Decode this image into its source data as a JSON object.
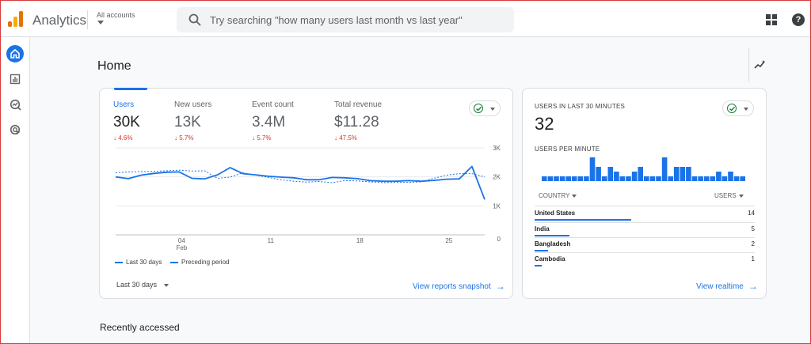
{
  "app": {
    "title": "Analytics",
    "account_label": "All accounts"
  },
  "search": {
    "placeholder": "Try searching \"how many users last month vs last year\""
  },
  "nav": [
    {
      "icon": "home-icon",
      "active": true
    },
    {
      "icon": "reports-icon",
      "active": false
    },
    {
      "icon": "explore-icon",
      "active": false
    },
    {
      "icon": "advertising-icon",
      "active": false
    }
  ],
  "page": {
    "title": "Home",
    "recently_accessed": "Recently accessed"
  },
  "metrics": [
    {
      "label": "Users",
      "value": "30K",
      "change": "↓ 4.6%"
    },
    {
      "label": "New users",
      "value": "13K",
      "change": "↓ 5.7%"
    },
    {
      "label": "Event count",
      "value": "3.4M",
      "change": "↓ 5.7%"
    },
    {
      "label": "Total revenue",
      "value": "$11.28",
      "change": "↓ 47.5%"
    }
  ],
  "chart_data": {
    "type": "line",
    "x_ticks": [
      "04\nFeb",
      "11",
      "18",
      "25"
    ],
    "y_ticks": [
      "3K",
      "2K",
      "1K",
      "0"
    ],
    "ylim": [
      0,
      3000
    ],
    "series": [
      {
        "name": "Last 30 days",
        "style": "solid",
        "color": "#1a73e8",
        "values": [
          2000,
          1940,
          2060,
          2120,
          2160,
          2170,
          1950,
          1930,
          2070,
          2320,
          2110,
          2070,
          2020,
          1990,
          1970,
          1900,
          1900,
          1980,
          1970,
          1940,
          1870,
          1850,
          1850,
          1870,
          1850,
          1880,
          1920,
          1930,
          2360,
          1220
        ]
      },
      {
        "name": "Preceding period",
        "style": "dashed",
        "color": "#1a73e8",
        "values": [
          2140,
          2170,
          2180,
          2190,
          2210,
          2230,
          2200,
          2210,
          1950,
          1990,
          2140,
          2060,
          1980,
          1900,
          1850,
          1820,
          1840,
          1800,
          1870,
          1860,
          1830,
          1800,
          1810,
          1810,
          1830,
          1950,
          2060,
          2110,
          2110,
          2000
        ]
      }
    ],
    "legend": [
      "Last 30 days",
      "Preceding period"
    ]
  },
  "date_range": "Last 30 days",
  "links": {
    "snapshot": "View reports snapshot",
    "realtime": "View realtime"
  },
  "realtime": {
    "label": "USERS IN LAST 30 MINUTES",
    "value": "32",
    "per_minute_label": "USERS PER MINUTE",
    "per_minute": [
      1,
      1,
      1,
      1,
      1,
      1,
      1,
      1,
      5,
      3,
      1,
      3,
      2,
      1,
      1,
      2,
      3,
      1,
      1,
      1,
      5,
      1,
      3,
      3,
      3,
      1,
      1,
      1,
      1,
      2,
      1,
      2,
      1,
      1
    ],
    "col_country": "COUNTRY",
    "col_users": "USERS",
    "rows": [
      {
        "country": "United States",
        "users": "14",
        "value": 14
      },
      {
        "country": "India",
        "users": "5",
        "value": 5
      },
      {
        "country": "Bangladesh",
        "users": "2",
        "value": 2
      },
      {
        "country": "Cambodia",
        "users": "1",
        "value": 1
      }
    ]
  },
  "colors": {
    "accent": "#1a73e8",
    "negative": "#d93025",
    "positive": "#188038"
  }
}
